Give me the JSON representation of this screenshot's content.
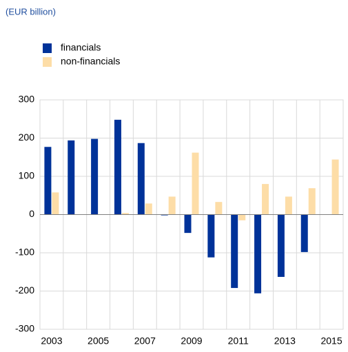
{
  "chart_data": {
    "type": "bar",
    "y_label": "(EUR billion)",
    "categories": [
      "2003",
      null,
      "2005",
      null,
      "2007",
      null,
      "2009",
      null,
      "2011",
      null,
      "2013",
      null,
      "2015"
    ],
    "series": [
      {
        "name": "financials",
        "color": "#003299",
        "values": [
          177,
          194,
          198,
          248,
          187,
          -2,
          -48,
          -112,
          -192,
          -206,
          -163,
          -98,
          null
        ]
      },
      {
        "name": "non-financials",
        "color": "#fddda7",
        "values": [
          58,
          0,
          0,
          4,
          29,
          47,
          162,
          33,
          -15,
          80,
          47,
          69,
          144
        ]
      }
    ],
    "ylim": [
      -300,
      300
    ],
    "yticks": [
      300,
      200,
      100,
      0,
      -100,
      -200,
      -300
    ],
    "grid": true,
    "legend": "top-left"
  }
}
